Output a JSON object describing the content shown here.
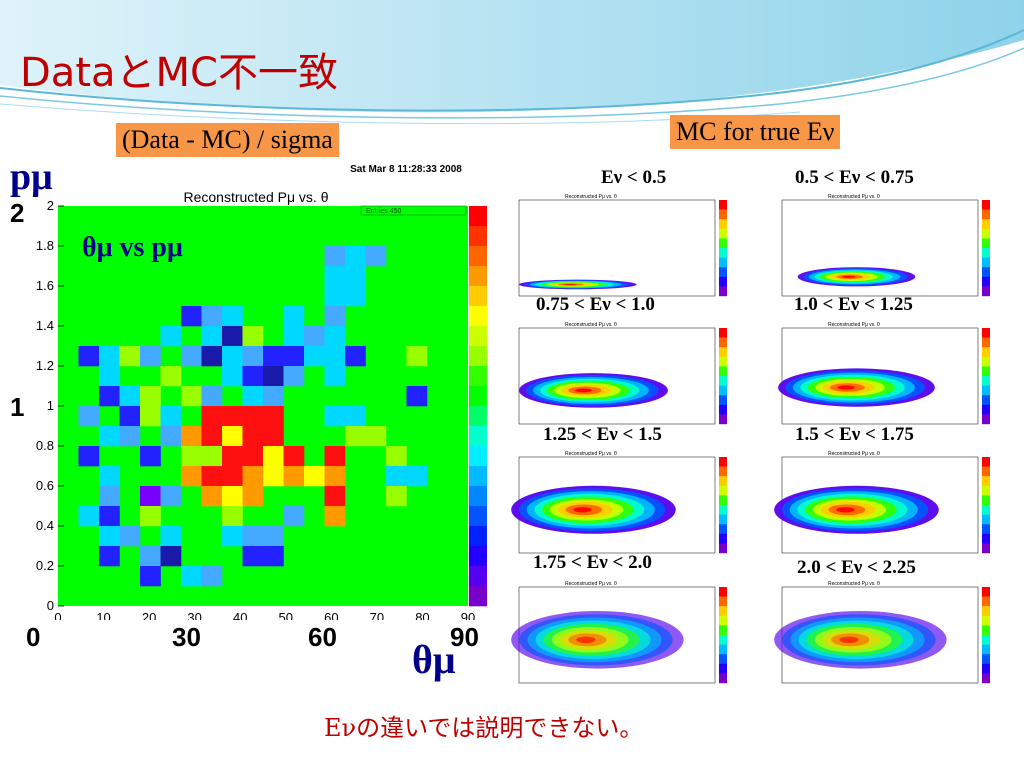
{
  "slide": {
    "title": "DataとMC不一致",
    "bottom_note": "Eνの違いでは説明できない。"
  },
  "main_plot": {
    "header_label": "(Data - MC) / sigma",
    "timestamp": "Sat Mar  8 11:28:33 2008",
    "plot_title": "Reconstructed Pμ vs. θ",
    "stats_box": "Entries 450",
    "y_symbol": "pμ",
    "x_symbol": "θμ",
    "overlay_label": "θμ vs pμ",
    "y_big_labels": [
      "2",
      "1",
      "0"
    ],
    "x_big_labels": [
      "30",
      "60",
      "90"
    ],
    "y_ticks": [
      "2",
      "1.8",
      "1.6",
      "1.4",
      "1.2",
      "1",
      "0.8",
      "0.6",
      "0.4",
      "0.2",
      "0"
    ],
    "x_ticks": [
      "0",
      "10",
      "20",
      "30",
      "40",
      "50",
      "60",
      "70",
      "80",
      "90"
    ]
  },
  "mc_section": {
    "header_label": "MC for true Eν",
    "panels": [
      {
        "label": "Eν < 0.5",
        "mini_title": "Reconstructed Pμ vs. θ"
      },
      {
        "label": "0.5 < Eν < 0.75",
        "mini_title": "Reconstructed Pμ vs. θ"
      },
      {
        "label": "0.75 < Eν < 1.0",
        "mini_title": "Reconstructed Pμ vs. θ"
      },
      {
        "label": "1.0 < Eν < 1.25",
        "mini_title": "Reconstructed Pμ vs. θ"
      },
      {
        "label": "1.25 < Eν < 1.5",
        "mini_title": "Reconstructed Pμ vs. θ"
      },
      {
        "label": "1.5 < Eν < 1.75",
        "mini_title": "Reconstructed Pμ vs. θ"
      },
      {
        "label": "1.75 < Eν < 2.0",
        "mini_title": "Reconstructed Pμ vs. θ"
      },
      {
        "label": "2.0 < Eν < 2.25",
        "mini_title": "Reconstructed Pμ vs. θ"
      }
    ]
  },
  "colors": {
    "title": "#c00000",
    "label_bg": "#f79646",
    "symbol": "#00008b",
    "histogram_bg": "#00ff00"
  }
}
